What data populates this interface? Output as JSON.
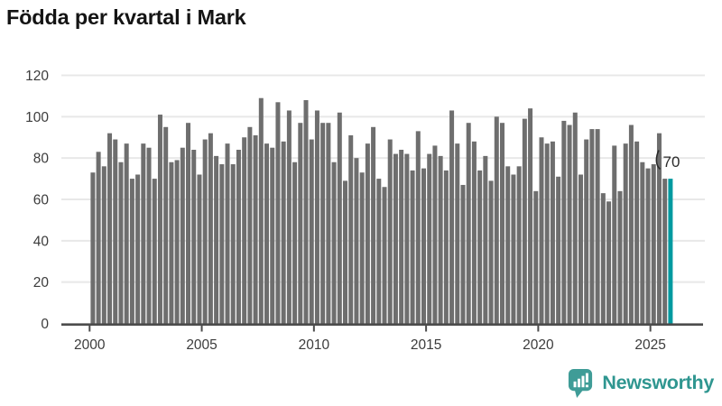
{
  "title": "Födda per kvartal i Mark",
  "chart_data": {
    "type": "bar",
    "title": "Födda per kvartal i Mark",
    "x_start_year": 2000,
    "x_start_quarter": 1,
    "x_end_year": 2025,
    "x_end_quarter": 4,
    "values": [
      73,
      83,
      76,
      92,
      89,
      78,
      87,
      70,
      72,
      87,
      85,
      70,
      101,
      95,
      78,
      79,
      85,
      97,
      84,
      72,
      89,
      92,
      81,
      77,
      87,
      77,
      84,
      90,
      95,
      91,
      109,
      87,
      85,
      107,
      88,
      103,
      78,
      97,
      108,
      89,
      103,
      97,
      97,
      78,
      102,
      69,
      91,
      80,
      73,
      87,
      95,
      70,
      66,
      89,
      82,
      84,
      82,
      74,
      93,
      75,
      82,
      86,
      81,
      74,
      103,
      87,
      67,
      97,
      88,
      74,
      81,
      69,
      100,
      97,
      76,
      72,
      76,
      99,
      104,
      64,
      90,
      87,
      88,
      71,
      98,
      96,
      102,
      72,
      89,
      94,
      94,
      63,
      59,
      86,
      64,
      87,
      96,
      88,
      78,
      75,
      77,
      92,
      70,
      70
    ],
    "highlight_last_bar": true,
    "annotation_label": "70",
    "yticks": [
      0,
      20,
      40,
      60,
      80,
      100,
      120
    ],
    "ylim": [
      0,
      120
    ],
    "xticks": [
      2000,
      2005,
      2010,
      2015,
      2020,
      2025
    ],
    "grid": true,
    "legend": "none",
    "bar_color": "#6e6e6e",
    "highlight_color": "#009aa0"
  },
  "colors": {
    "axis_line": "#4c4c4c",
    "tick_label": "#3c3c3c",
    "gridline": "#e8e8e8",
    "annotation_text": "#2b2b2b",
    "brand_teal": "#2f9690",
    "logo_bubble": "#3f9c97"
  },
  "branding": {
    "name": "Newsworthy",
    "icon": "newsworthy-speech-bubble-chart-icon"
  }
}
